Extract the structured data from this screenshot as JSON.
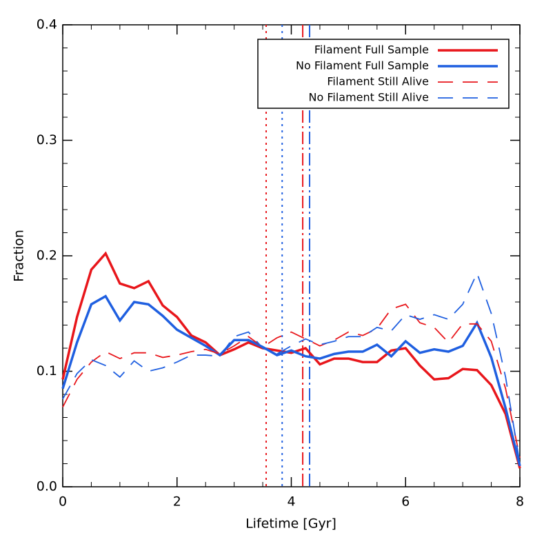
{
  "chart_data": {
    "type": "line",
    "xlabel": "Lifetime [Gyr]",
    "ylabel": "Fraction",
    "xlim": [
      0,
      8
    ],
    "ylim": [
      0,
      0.4
    ],
    "xticks": [
      0,
      2,
      4,
      6,
      8
    ],
    "yticks": [
      {
        "value": 0,
        "label": "0.0"
      },
      {
        "value": 0.1,
        "label": "0.1"
      },
      {
        "value": 0.2,
        "label": "0.2"
      },
      {
        "value": 0.3,
        "label": "0.3"
      },
      {
        "value": 0.4,
        "label": "0.4"
      }
    ],
    "x_minor": 4,
    "y_minor": 5,
    "legend": "upper right",
    "x": [
      0,
      0.25,
      0.5,
      0.75,
      1,
      1.25,
      1.5,
      1.75,
      2,
      2.25,
      2.5,
      2.75,
      3,
      3.25,
      3.5,
      3.75,
      4,
      4.25,
      4.5,
      4.75,
      5,
      5.25,
      5.5,
      5.75,
      6,
      6.25,
      6.5,
      6.75,
      7,
      7.25,
      7.5,
      7.75,
      8
    ],
    "series": [
      {
        "name": "Filament Full Sample",
        "color": "#e8161b",
        "dash": "solid",
        "values": [
          0.093,
          0.147,
          0.188,
          0.202,
          0.176,
          0.172,
          0.178,
          0.157,
          0.147,
          0.131,
          0.125,
          0.114,
          0.119,
          0.125,
          0.12,
          0.118,
          0.116,
          0.12,
          0.106,
          0.111,
          0.111,
          0.108,
          0.108,
          0.118,
          0.12,
          0.105,
          0.093,
          0.094,
          0.102,
          0.101,
          0.088,
          0.063,
          0.016
        ]
      },
      {
        "name": "No Filament Full Sample",
        "color": "#1f5fe0",
        "dash": "solid",
        "values": [
          0.085,
          0.125,
          0.158,
          0.165,
          0.144,
          0.16,
          0.158,
          0.148,
          0.136,
          0.129,
          0.122,
          0.114,
          0.127,
          0.127,
          0.121,
          0.114,
          0.118,
          0.113,
          0.111,
          0.115,
          0.117,
          0.117,
          0.123,
          0.113,
          0.126,
          0.116,
          0.119,
          0.117,
          0.122,
          0.142,
          0.112,
          0.068,
          0.018
        ]
      },
      {
        "name": "Filament Still Alive",
        "color": "#e8161b",
        "dash": "dashed",
        "values": [
          0.069,
          0.093,
          0.108,
          0.117,
          0.111,
          0.116,
          0.116,
          0.112,
          0.114,
          0.117,
          0.119,
          0.115,
          0.122,
          0.13,
          0.121,
          0.129,
          0.134,
          0.128,
          0.122,
          0.127,
          0.134,
          0.131,
          0.137,
          0.154,
          0.158,
          0.142,
          0.138,
          0.125,
          0.141,
          0.141,
          0.126,
          0.085,
          0.025
        ]
      },
      {
        "name": "No Filament Still Alive",
        "color": "#1f5fe0",
        "dash": "dashed",
        "values": [
          0.076,
          0.098,
          0.11,
          0.105,
          0.095,
          0.109,
          0.1,
          0.103,
          0.108,
          0.114,
          0.114,
          0.113,
          0.13,
          0.134,
          0.12,
          0.115,
          0.122,
          0.128,
          0.123,
          0.126,
          0.13,
          0.13,
          0.138,
          0.135,
          0.149,
          0.145,
          0.149,
          0.145,
          0.158,
          0.185,
          0.15,
          0.095,
          0.02
        ]
      }
    ],
    "vlines": [
      {
        "x": 3.56,
        "color": "#e8161b",
        "dash": "dotted"
      },
      {
        "x": 3.84,
        "color": "#1f5fe0",
        "dash": "dotted"
      },
      {
        "x": 4.2,
        "color": "#e8161b",
        "dash": "dashdot"
      },
      {
        "x": 4.32,
        "color": "#1f5fe0",
        "dash": "dashdot"
      }
    ]
  }
}
